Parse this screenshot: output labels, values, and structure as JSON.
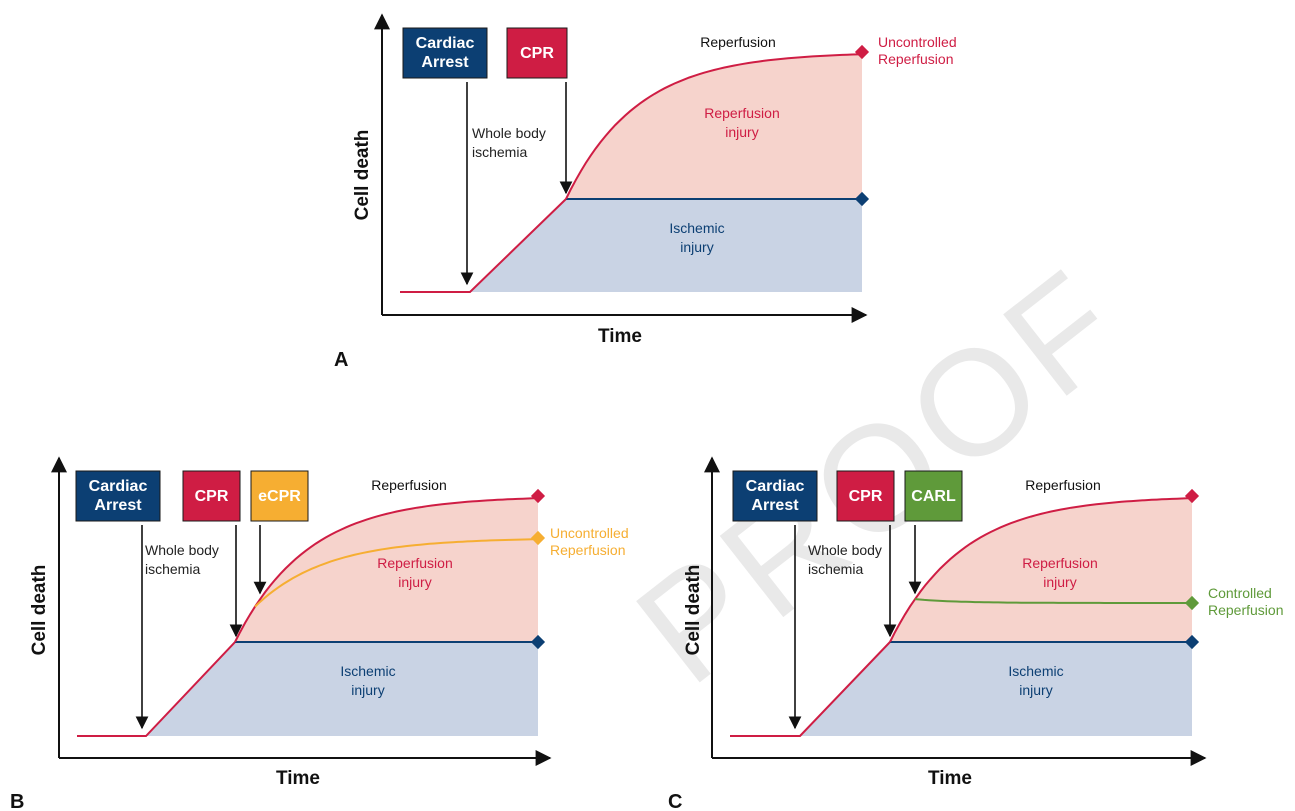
{
  "watermark": "PROOF",
  "colors": {
    "arrest": "#0c3f73",
    "cpr": "#cf1d44",
    "ecpr": "#f6ae32",
    "carl": "#5f9a3a",
    "ischemic_fill": "#c9d3e4",
    "reperfusion_fill": "#f6d3cc",
    "ischemic_line": "#0c3f73",
    "reperfusion_line": "#cf1d44",
    "ecpr_line": "#f6ae32",
    "carl_line": "#5f9a3a"
  },
  "panels": [
    {
      "letter": "A",
      "ylabel": "Cell death",
      "xlabel": "Time",
      "boxes": [
        {
          "text": [
            "Cardiac",
            "Arrest"
          ],
          "kind": "arrest"
        },
        {
          "text": [
            "CPR"
          ],
          "kind": "cpr"
        }
      ],
      "whole_body": [
        "Whole body",
        "ischemia"
      ],
      "reperfusion_label": "Reperfusion",
      "reperfusion_injury": [
        "Reperfusion",
        "injury"
      ],
      "ischemic_injury": [
        "Ischemic",
        "injury"
      ],
      "end_label": [
        "Uncontrolled",
        "Reperfusion"
      ],
      "end_kind": "reperfusion_line",
      "third_curve": null
    },
    {
      "letter": "B",
      "ylabel": "Cell death",
      "xlabel": "Time",
      "boxes": [
        {
          "text": [
            "Cardiac",
            "Arrest"
          ],
          "kind": "arrest"
        },
        {
          "text": [
            "CPR"
          ],
          "kind": "cpr"
        },
        {
          "text": [
            "eCPR"
          ],
          "kind": "ecpr"
        }
      ],
      "whole_body": [
        "Whole body",
        "ischemia"
      ],
      "reperfusion_label": "Reperfusion",
      "reperfusion_injury": [
        "Reperfusion",
        "injury"
      ],
      "ischemic_injury": [
        "Ischemic",
        "injury"
      ],
      "end_label": [
        "Uncontrolled",
        "Reperfusion"
      ],
      "end_kind": "ecpr_line",
      "third_curve": "ecpr"
    },
    {
      "letter": "C",
      "ylabel": "Cell death",
      "xlabel": "Time",
      "boxes": [
        {
          "text": [
            "Cardiac",
            "Arrest"
          ],
          "kind": "arrest"
        },
        {
          "text": [
            "CPR"
          ],
          "kind": "cpr"
        },
        {
          "text": [
            "CARL"
          ],
          "kind": "carl"
        }
      ],
      "whole_body": [
        "Whole body",
        "ischemia"
      ],
      "reperfusion_label": "Reperfusion",
      "reperfusion_injury": [
        "Reperfusion",
        "injury"
      ],
      "ischemic_injury": [
        "Ischemic",
        "injury"
      ],
      "end_label": [
        "Controlled",
        "Reperfusion"
      ],
      "end_kind": "carl_line",
      "third_curve": "carl"
    }
  ]
}
